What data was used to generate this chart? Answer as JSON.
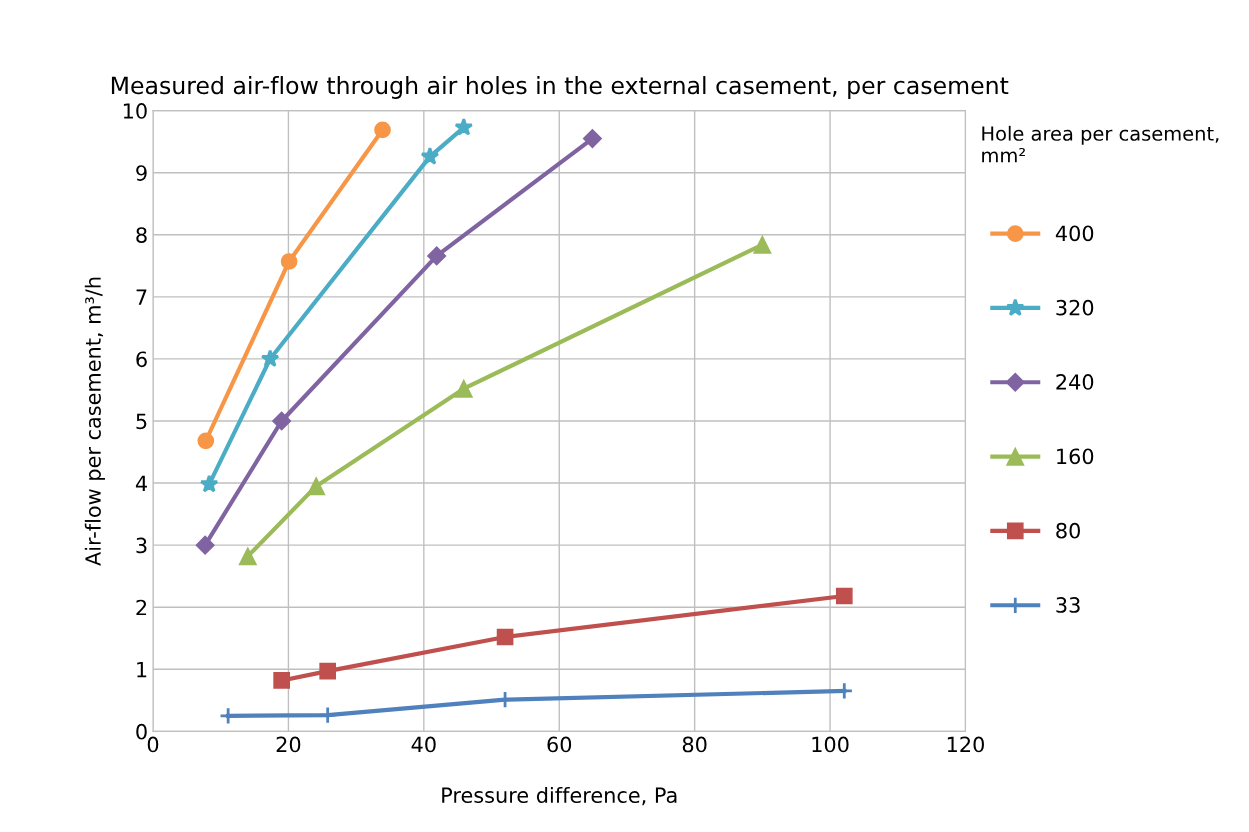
{
  "chart_data": {
    "type": "line",
    "title": "Measured air-flow through air holes in the external casement, per casement",
    "xlabel": "Pressure difference, Pa",
    "ylabel": "Air-flow per casement, m³/h",
    "legend_title": "Hole area per casement, mm²",
    "xlim": [
      0,
      120
    ],
    "xticks": [
      0,
      20,
      40,
      60,
      80,
      100,
      120
    ],
    "ylim": [
      0,
      10
    ],
    "yticks": [
      0,
      1,
      2,
      3,
      4,
      5,
      6,
      7,
      8,
      9,
      10
    ],
    "grid": true,
    "legend": "right",
    "series": [
      {
        "name": "400",
        "color": "#f79646",
        "marker": "circle",
        "x": [
          7.8,
          20.1,
          33.9
        ],
        "values": [
          4.68,
          7.57,
          9.69
        ]
      },
      {
        "name": "320",
        "color": "#4bacc6",
        "marker": "star",
        "x": [
          8.3,
          17.3,
          40.9,
          45.9
        ],
        "values": [
          3.98,
          6.0,
          9.26,
          9.73
        ]
      },
      {
        "name": "240",
        "color": "#8064a2",
        "marker": "diamond",
        "x": [
          7.7,
          19.0,
          41.9,
          64.9
        ],
        "values": [
          3.0,
          5.0,
          7.66,
          9.55
        ]
      },
      {
        "name": "160",
        "color": "#9bbb59",
        "marker": "triangle",
        "x": [
          14.0,
          24.1,
          45.9,
          90.0
        ],
        "values": [
          2.82,
          3.95,
          5.52,
          7.84
        ]
      },
      {
        "name": "80",
        "color": "#c0504d",
        "marker": "square",
        "x": [
          19.0,
          25.8,
          52.0,
          102.1
        ],
        "values": [
          0.82,
          0.97,
          1.52,
          2.18
        ]
      },
      {
        "name": "33",
        "color": "#4f81bd",
        "marker": "cross",
        "x": [
          11.1,
          25.8,
          52.0,
          102.1
        ],
        "values": [
          0.25,
          0.26,
          0.51,
          0.65
        ]
      }
    ]
  }
}
